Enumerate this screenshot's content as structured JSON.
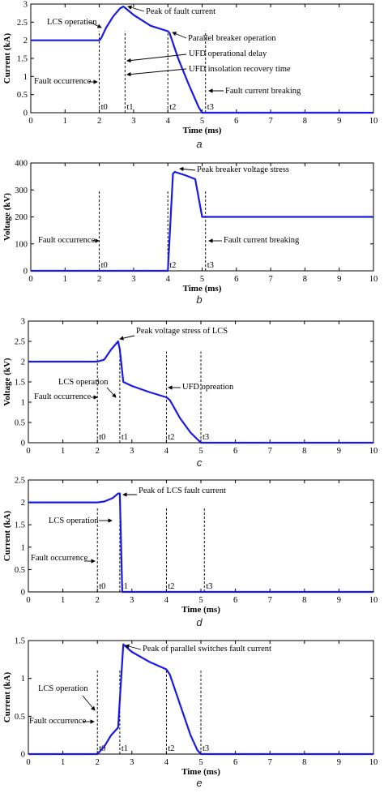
{
  "chart_data": [
    {
      "type": "line",
      "caption": "a",
      "xlabel": "Time (ms)",
      "ylabel": "Current (kA)",
      "xlim": [
        0,
        10
      ],
      "ylim": [
        0,
        3
      ],
      "xticks": [
        0,
        1,
        2,
        3,
        4,
        5,
        6,
        7,
        8,
        9,
        10
      ],
      "yticks": [
        0,
        0.5,
        1,
        1.5,
        2,
        2.5,
        3
      ],
      "ytick_labels": [
        "0",
        "0.5",
        "1",
        "1.5",
        "2",
        "2.5",
        "3"
      ],
      "series": [
        {
          "x": [
            0,
            2,
            2.05,
            2.2,
            2.4,
            2.6,
            2.7,
            2.75,
            3,
            3.5,
            4,
            4.05,
            4.3,
            4.6,
            4.9,
            5,
            10
          ],
          "y": [
            2,
            2,
            2.05,
            2.35,
            2.65,
            2.88,
            2.93,
            2.9,
            2.7,
            2.4,
            2.25,
            2.2,
            1.5,
            0.8,
            0.15,
            0,
            0
          ]
        }
      ],
      "markers": [
        {
          "label": "t0",
          "x": 2
        },
        {
          "label": "t1",
          "x": 2.75
        },
        {
          "label": "t2",
          "x": 4
        },
        {
          "label": "t3",
          "x": 5.1
        }
      ],
      "annotations": [
        "LCS operation",
        "Peak of fault current",
        "Parallel breaker operation",
        "UFD operational delay",
        "UFD insolation recovery time",
        "Fault occurrence",
        "Fault current breaking"
      ]
    },
    {
      "type": "line",
      "caption": "b",
      "xlabel": "Time (ms)",
      "ylabel": "Voltage (kV)",
      "xlim": [
        0,
        10
      ],
      "ylim": [
        0,
        400
      ],
      "xticks": [
        0,
        1,
        2,
        3,
        4,
        5,
        6,
        7,
        8,
        9,
        10
      ],
      "yticks": [
        0,
        100,
        200,
        300,
        400
      ],
      "ytick_labels": [
        "0",
        "100",
        "200",
        "300",
        "400"
      ],
      "series": [
        {
          "x": [
            0,
            4,
            4.15,
            4.2,
            4.5,
            4.8,
            5,
            5.1,
            10
          ],
          "y": [
            0,
            0,
            360,
            367,
            355,
            340,
            200,
            200,
            200
          ]
        }
      ],
      "markers": [
        {
          "label": "t0",
          "x": 2
        },
        {
          "label": "t2",
          "x": 4
        },
        {
          "label": "t3",
          "x": 5.1
        }
      ],
      "annotations": [
        "Peak breaker voltage stress",
        "Fault occurrence",
        "Fault current breaking"
      ]
    },
    {
      "type": "line",
      "caption": "c",
      "xlabel": "",
      "ylabel": "Voltage (kV)",
      "xlim": [
        0,
        10
      ],
      "ylim": [
        0,
        3
      ],
      "xticks": [
        0,
        1,
        2,
        3,
        4,
        5,
        6,
        7,
        8,
        9,
        10
      ],
      "yticks": [
        0,
        0.5,
        1,
        1.5,
        2,
        2.5,
        3
      ],
      "ytick_labels": [
        "0",
        "0.5",
        "1",
        "1.5",
        "2",
        "2.5",
        "3"
      ],
      "series": [
        {
          "x": [
            0,
            2,
            2.2,
            2.4,
            2.6,
            2.65,
            2.75,
            3,
            3.5,
            4,
            4.1,
            4.4,
            4.7,
            5,
            10
          ],
          "y": [
            2,
            2,
            2.05,
            2.3,
            2.5,
            2.3,
            1.5,
            1.4,
            1.25,
            1.12,
            1.05,
            0.6,
            0.25,
            0,
            0
          ]
        }
      ],
      "markers": [
        {
          "label": "t0",
          "x": 2
        },
        {
          "label": "t1",
          "x": 2.65
        },
        {
          "label": "t2",
          "x": 4
        },
        {
          "label": "t3",
          "x": 5
        }
      ],
      "annotations": [
        "Peak voltage stress of LCS",
        "LCS operation",
        "UFD opreation",
        "Fault occurrence"
      ]
    },
    {
      "type": "line",
      "caption": "d",
      "xlabel": "Time (ms)",
      "ylabel": "Current (kA)",
      "xlim": [
        0,
        10
      ],
      "ylim": [
        0,
        2.5
      ],
      "xticks": [
        0,
        1,
        2,
        3,
        4,
        5,
        6,
        7,
        8,
        9,
        10
      ],
      "yticks": [
        0,
        0.5,
        1,
        1.5,
        2,
        2.5
      ],
      "ytick_labels": [
        "0",
        "0.5",
        "1",
        "1.5",
        "2",
        "2.5"
      ],
      "series": [
        {
          "x": [
            0,
            2,
            2.2,
            2.45,
            2.6,
            2.65,
            2.72,
            10
          ],
          "y": [
            2,
            2,
            2.02,
            2.1,
            2.2,
            2.2,
            0,
            0
          ]
        }
      ],
      "markers": [
        {
          "label": "t0",
          "x": 2
        },
        {
          "label": "t1",
          "x": 2.65
        },
        {
          "label": "t2",
          "x": 4
        },
        {
          "label": "t3",
          "x": 5.1
        }
      ],
      "annotations": [
        "Peak of LCS fault current",
        "LCS operation",
        "Fault occurrence"
      ]
    },
    {
      "type": "line",
      "caption": "e",
      "xlabel": "Time (ms)",
      "ylabel": "Current (kA)",
      "xlim": [
        0,
        10
      ],
      "ylim": [
        0,
        1.5
      ],
      "xticks": [
        0,
        1,
        2,
        3,
        4,
        5,
        6,
        7,
        8,
        9,
        10
      ],
      "yticks": [
        0,
        0.5,
        1,
        1.5
      ],
      "ytick_labels": [
        "0",
        "0.5",
        "1",
        "1.5"
      ],
      "series": [
        {
          "x": [
            0,
            2,
            2.2,
            2.4,
            2.6,
            2.75,
            3,
            3.5,
            4,
            4.1,
            4.4,
            4.7,
            4.9,
            5,
            10
          ],
          "y": [
            0,
            0,
            0.1,
            0.25,
            0.35,
            1.45,
            1.35,
            1.22,
            1.12,
            1.05,
            0.65,
            0.25,
            0.05,
            0,
            0
          ]
        }
      ],
      "markers": [
        {
          "label": "t0",
          "x": 2
        },
        {
          "label": "t1",
          "x": 2.65
        },
        {
          "label": "t2",
          "x": 4
        },
        {
          "label": "t3",
          "x": 5
        }
      ],
      "annotations": [
        "Peak of parallel switches fault current",
        "LCS operation",
        "Fault occurrence"
      ]
    }
  ]
}
